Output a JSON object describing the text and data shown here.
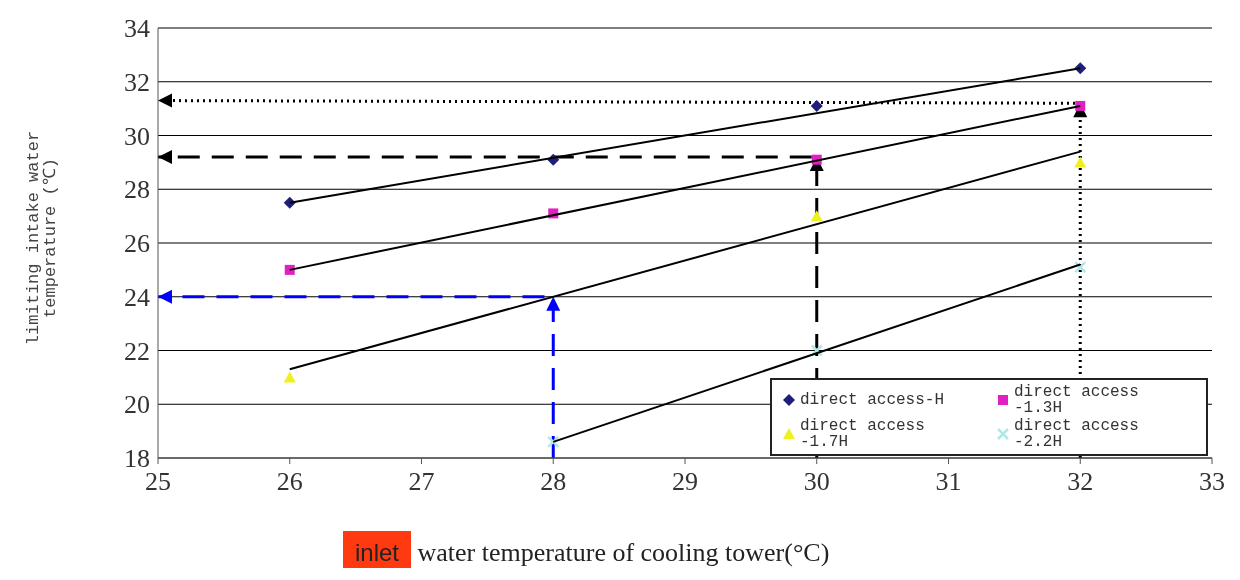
{
  "chart_data": {
    "type": "scatter",
    "xlabel": "inlet water temperature of cooling tower(°C)",
    "ylabel": "limiting intake water temperature (℃)",
    "xlim": [
      25,
      33
    ],
    "xticks": [
      25,
      26,
      27,
      28,
      29,
      30,
      31,
      32,
      33
    ],
    "ylim": [
      18,
      34
    ],
    "yticks": [
      18,
      20,
      22,
      24,
      26,
      28,
      30,
      32,
      34
    ],
    "grid": "y",
    "legend": "bottom right",
    "series": [
      {
        "type": "line",
        "x": [
          26,
          32
        ],
        "values": [
          27.5,
          32.5
        ],
        "color": "#000000",
        "marker": "none",
        "line_style": "solid"
      },
      {
        "type": "line",
        "x": [
          26,
          32
        ],
        "values": [
          25,
          31.1
        ],
        "color": "#000000",
        "marker": "none",
        "line_style": "solid"
      },
      {
        "type": "line",
        "x": [
          26,
          32
        ],
        "values": [
          21.3,
          29.4
        ],
        "color": "#000000",
        "marker": "none",
        "line_style": "solid"
      },
      {
        "type": "line",
        "x": [
          28,
          32
        ],
        "values": [
          18.6,
          25.2
        ],
        "color": "#000000",
        "marker": "none",
        "line_style": "solid"
      },
      {
        "name": "direct access-H",
        "x": [
          26,
          28,
          30,
          32
        ],
        "values": [
          27.5,
          29.1,
          31.1,
          32.5
        ],
        "color": "#1f1f7a",
        "marker": "diamond"
      },
      {
        "name": "direct access -1.3H",
        "x": [
          26,
          28,
          30,
          32
        ],
        "values": [
          25,
          27.1,
          29.1,
          31.1
        ],
        "color": "#e020c0",
        "marker": "square"
      },
      {
        "name": "direct access -1.7H",
        "x": [
          26,
          28,
          30,
          32
        ],
        "values": [
          21,
          null,
          27,
          29
        ],
        "color": "#f0f020",
        "marker": "triangle"
      },
      {
        "name": "direct access -2.2H",
        "x": [
          28,
          30,
          32
        ],
        "values": [
          18.6,
          22,
          25.1
        ],
        "color": "#b0e8e8",
        "marker": "cross"
      },
      {
        "type": "line",
        "x": [
          28,
          28,
          25
        ],
        "values": [
          18,
          24,
          24
        ],
        "color": "#0000ff",
        "line_style": "dashed"
      },
      {
        "type": "line",
        "x": [
          30,
          30,
          25
        ],
        "values": [
          18,
          29.2,
          29.2
        ],
        "color": "#000000",
        "line_style": "dashed"
      },
      {
        "type": "line",
        "x": [
          32,
          32,
          25
        ],
        "values": [
          18,
          31.2,
          31.3
        ],
        "color": "#000000",
        "line_style": "dotted"
      }
    ]
  }
}
